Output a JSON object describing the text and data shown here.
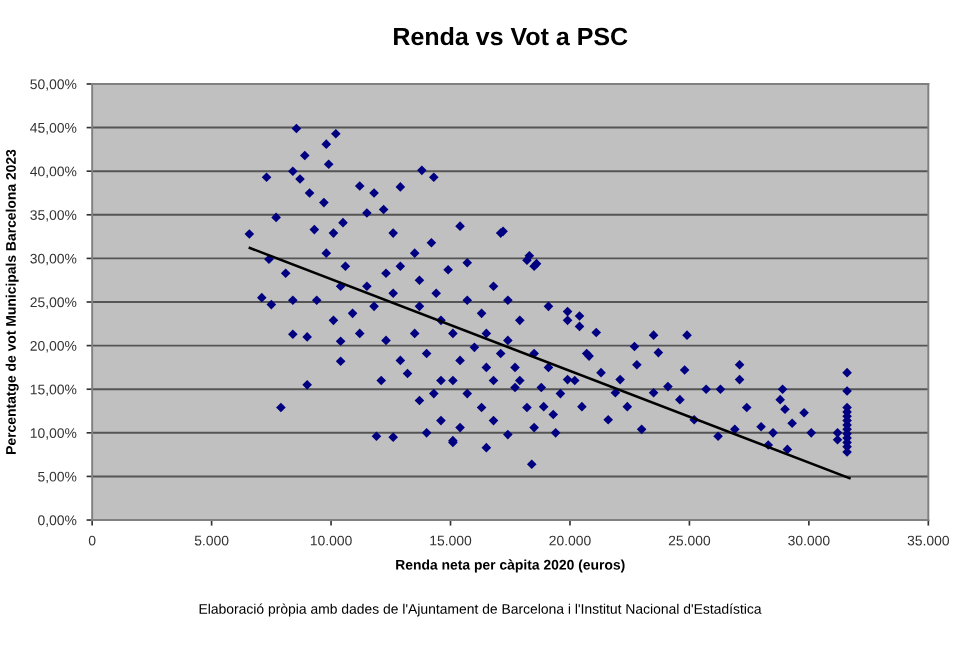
{
  "chart_data": {
    "type": "scatter",
    "title": "Renda vs Vot a PSC",
    "xlabel": "Renda neta per càpita 2020 (euros)",
    "ylabel": "Percentatge de vot Municipals Barcelona 2023",
    "annotations": [
      "Elaboració pròpia amb dades de l'Ajuntament de Barcelona i l'Institut Nacional d'Estadística"
    ],
    "xlim": [
      0,
      35000
    ],
    "xticks": [
      0,
      {
        "value": 5000,
        "label": "5.000"
      },
      {
        "value": 10000,
        "label": "10.000"
      },
      {
        "value": 15000,
        "label": "15.000"
      },
      {
        "value": 20000,
        "label": "20.000"
      },
      {
        "value": 25000,
        "label": "25.000"
      },
      {
        "value": 30000,
        "label": "30.000"
      },
      {
        "value": 35000,
        "label": "35.000"
      }
    ],
    "ylim": [
      0,
      50
    ],
    "yticks": [
      {
        "value": 0,
        "label": "0,00%"
      },
      {
        "value": 5,
        "label": "5,00%"
      },
      {
        "value": 10,
        "label": "10,00%"
      },
      {
        "value": 15,
        "label": "15,00%"
      },
      {
        "value": 20,
        "label": "20,00%"
      },
      {
        "value": 25,
        "label": "25,00%"
      },
      {
        "value": 30,
        "label": "30,00%"
      },
      {
        "value": 35,
        "label": "35,00%"
      },
      {
        "value": 40,
        "label": "40,00%"
      },
      {
        "value": 45,
        "label": "45,00%"
      },
      {
        "value": 50,
        "label": "50,00%"
      }
    ],
    "grid": "y",
    "marker": "diamond",
    "series": [
      {
        "color": "#000080",
        "x": [
          6580,
          7300,
          7700,
          7100,
          7500,
          7400,
          7900,
          8550,
          8400,
          8900,
          8400,
          9000,
          9800,
          10200,
          9900,
          10400,
          10400,
          12900,
          11900,
          13800,
          14300,
          14000,
          15100,
          15400,
          17200,
          18300,
          18600,
          18400,
          19900,
          20400,
          23500,
          24900,
          23700,
          22800,
          24800,
          27100,
          27100,
          25700,
          26300,
          27400,
          28900,
          28800,
          29000,
          28000,
          28500,
          29300,
          29100,
          29800,
          30100,
          28300,
          26200,
          26900,
          31600,
          31600,
          31600,
          31600,
          31600,
          31600,
          31600,
          31600,
          31600,
          31600,
          31600,
          31600,
          31600,
          31200,
          31200,
          8700,
          9100,
          9700,
          9300,
          10100,
          10500,
          11200,
          11800,
          11500,
          12200,
          12600,
          12900,
          12300,
          13500,
          14200,
          13700,
          15400,
          15700,
          17100,
          14900,
          14400,
          11800,
          10900,
          10100,
          9000,
          11200,
          12300,
          12900,
          12100,
          12600,
          13200,
          14000,
          14600,
          15700,
          16300,
          16800,
          17400,
          18200,
          18500,
          17900,
          19100,
          19900,
          20400,
          20700,
          20200,
          19600,
          19100,
          18500,
          17700,
          17100,
          16500,
          16000,
          15400,
          15100,
          15700,
          16300,
          16800,
          17400,
          16500,
          15100,
          14600,
          14300,
          13700,
          14600,
          17700,
          18200,
          18800,
          19300,
          18500,
          17900,
          16800,
          17400,
          16500,
          15100,
          13500,
          13700,
          12600,
          11500,
          10600,
          9800,
          8400,
          8100,
          9400,
          10400,
          20800,
          21300,
          21900,
          22400,
          21600,
          23000,
          23500,
          24100,
          24600,
          25200,
          22700,
          22100,
          20500,
          19900,
          19400,
          18900,
          21100
        ],
        "values": [
          32.8,
          39.3,
          34.7,
          25.5,
          24.7,
          29.9,
          12.9,
          44.9,
          40.0,
          41.8,
          21.3,
          15.5,
          43.1,
          44.3,
          40.8,
          20.5,
          18.2,
          38.2,
          9.6,
          40.1,
          39.3,
          10.0,
          8.9,
          10.6,
          33.1,
          30.3,
          29.4,
          6.4,
          23.9,
          23.4,
          21.2,
          21.2,
          19.2,
          17.8,
          17.2,
          17.8,
          16.1,
          15.0,
          15.0,
          12.9,
          15.0,
          13.8,
          12.7,
          10.7,
          10.0,
          11.1,
          8.1,
          12.3,
          10.0,
          8.6,
          9.6,
          10.4,
          16.9,
          14.8,
          12.9,
          12.4,
          11.9,
          11.4,
          10.9,
          10.4,
          9.9,
          9.4,
          8.9,
          8.4,
          7.8,
          10.0,
          9.2,
          39.1,
          37.5,
          36.4,
          33.3,
          32.9,
          34.1,
          38.3,
          37.5,
          35.2,
          35.6,
          32.9,
          29.1,
          28.3,
          30.6,
          31.8,
          27.5,
          33.7,
          29.5,
          32.9,
          28.7,
          26.0,
          24.5,
          23.7,
          22.9,
          21.0,
          21.4,
          20.6,
          18.3,
          16.0,
          9.5,
          16.8,
          19.1,
          22.9,
          25.2,
          23.7,
          26.8,
          25.2,
          29.8,
          29.1,
          22.9,
          24.5,
          22.9,
          22.2,
          19.1,
          16.0,
          14.5,
          17.5,
          19.1,
          17.5,
          19.1,
          17.5,
          19.8,
          18.3,
          16.0,
          14.5,
          12.9,
          11.4,
          9.8,
          8.3,
          9.1,
          11.4,
          14.5,
          13.7,
          16.0,
          15.2,
          12.9,
          15.2,
          12.1,
          10.6,
          16.0,
          16.0,
          20.6,
          21.4,
          21.4,
          21.4,
          24.5,
          26.0,
          26.8,
          29.1,
          30.6,
          25.2,
          28.3,
          25.2,
          26.8,
          18.8,
          16.9,
          14.6,
          13.0,
          11.5,
          10.4,
          14.6,
          15.3,
          13.8,
          11.5,
          19.9,
          16.1,
          13.0,
          16.1,
          10.0,
          13.0,
          21.5
        ]
      },
      {
        "type": "line",
        "color": "#000000",
        "marker": "none",
        "x": [
          6600,
          31700
        ],
        "values": [
          31.2,
          4.8
        ]
      }
    ]
  }
}
